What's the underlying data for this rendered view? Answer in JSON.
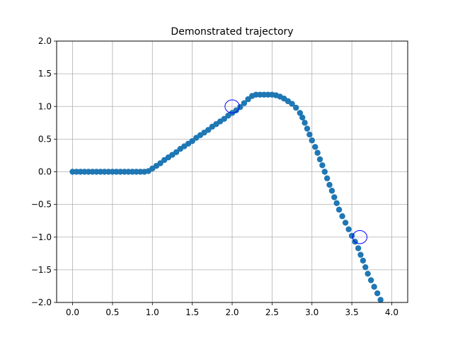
{
  "chart_data": {
    "type": "scatter",
    "title": "Demonstrated trajectory",
    "xlabel": "",
    "ylabel": "",
    "xlim": [
      -0.2,
      4.2
    ],
    "ylim": [
      -2.0,
      2.0
    ],
    "grid": true,
    "x_ticks": [
      "0.0",
      "0.5",
      "1.0",
      "1.5",
      "2.0",
      "2.5",
      "3.0",
      "3.5",
      "4.0"
    ],
    "y_ticks": [
      "2.0",
      "1.5",
      "1.0",
      "0.5",
      "0.0",
      "−0.5",
      "−1.0",
      "−1.5",
      "−2.0"
    ],
    "series": [
      {
        "color": "#1f77b4",
        "marker": "circle",
        "points": [
          [
            0.0,
            0.0
          ],
          [
            0.05,
            0.0
          ],
          [
            0.1,
            0.0
          ],
          [
            0.15,
            0.0
          ],
          [
            0.2,
            0.0
          ],
          [
            0.25,
            0.0
          ],
          [
            0.3,
            0.0
          ],
          [
            0.35,
            0.0
          ],
          [
            0.4,
            0.0
          ],
          [
            0.45,
            0.0
          ],
          [
            0.5,
            0.0
          ],
          [
            0.55,
            0.0
          ],
          [
            0.6,
            0.0
          ],
          [
            0.65,
            0.0
          ],
          [
            0.7,
            0.0
          ],
          [
            0.75,
            0.0
          ],
          [
            0.8,
            0.0
          ],
          [
            0.85,
            0.0
          ],
          [
            0.9,
            0.0
          ],
          [
            0.95,
            0.01
          ],
          [
            1.0,
            0.05
          ],
          [
            1.05,
            0.09
          ],
          [
            1.1,
            0.13
          ],
          [
            1.15,
            0.18
          ],
          [
            1.2,
            0.22
          ],
          [
            1.25,
            0.26
          ],
          [
            1.3,
            0.3
          ],
          [
            1.35,
            0.35
          ],
          [
            1.4,
            0.39
          ],
          [
            1.45,
            0.43
          ],
          [
            1.5,
            0.47
          ],
          [
            1.55,
            0.52
          ],
          [
            1.6,
            0.56
          ],
          [
            1.65,
            0.6
          ],
          [
            1.7,
            0.64
          ],
          [
            1.75,
            0.69
          ],
          [
            1.8,
            0.73
          ],
          [
            1.85,
            0.77
          ],
          [
            1.9,
            0.81
          ],
          [
            1.95,
            0.86
          ],
          [
            2.0,
            0.9
          ],
          [
            2.05,
            0.94
          ],
          [
            2.1,
            0.99
          ],
          [
            2.15,
            1.05
          ],
          [
            2.2,
            1.11
          ],
          [
            2.25,
            1.16
          ],
          [
            2.3,
            1.18
          ],
          [
            2.35,
            1.18
          ],
          [
            2.4,
            1.18
          ],
          [
            2.45,
            1.18
          ],
          [
            2.5,
            1.18
          ],
          [
            2.55,
            1.17
          ],
          [
            2.6,
            1.15
          ],
          [
            2.65,
            1.12
          ],
          [
            2.7,
            1.08
          ],
          [
            2.75,
            1.04
          ],
          [
            2.8,
            0.98
          ],
          [
            2.85,
            0.9
          ],
          [
            2.88,
            0.83
          ],
          [
            2.91,
            0.75
          ],
          [
            2.94,
            0.66
          ],
          [
            2.97,
            0.57
          ],
          [
            3.0,
            0.48
          ],
          [
            3.04,
            0.38
          ],
          [
            3.07,
            0.29
          ],
          [
            3.1,
            0.19
          ],
          [
            3.13,
            0.1
          ],
          [
            3.16,
            0.0
          ],
          [
            3.19,
            -0.1
          ],
          [
            3.22,
            -0.2
          ],
          [
            3.25,
            -0.29
          ],
          [
            3.28,
            -0.39
          ],
          [
            3.31,
            -0.48
          ],
          [
            3.34,
            -0.58
          ],
          [
            3.38,
            -0.68
          ],
          [
            3.42,
            -0.78
          ],
          [
            3.46,
            -0.88
          ],
          [
            3.5,
            -0.98
          ],
          [
            3.54,
            -1.07
          ],
          [
            3.58,
            -1.17
          ],
          [
            3.61,
            -1.27
          ],
          [
            3.64,
            -1.36
          ],
          [
            3.67,
            -1.46
          ],
          [
            3.7,
            -1.56
          ],
          [
            3.74,
            -1.66
          ],
          [
            3.78,
            -1.76
          ],
          [
            3.82,
            -1.86
          ],
          [
            3.86,
            -1.96
          ]
        ]
      }
    ],
    "annotations": [
      {
        "shape": "ellipse",
        "cx": 2.0,
        "cy": 1.0,
        "rx": 0.09,
        "ry": 0.1,
        "color": "#0000ff"
      },
      {
        "shape": "ellipse",
        "cx": 3.6,
        "cy": -1.0,
        "rx": 0.09,
        "ry": 0.1,
        "color": "#0000ff"
      }
    ]
  }
}
